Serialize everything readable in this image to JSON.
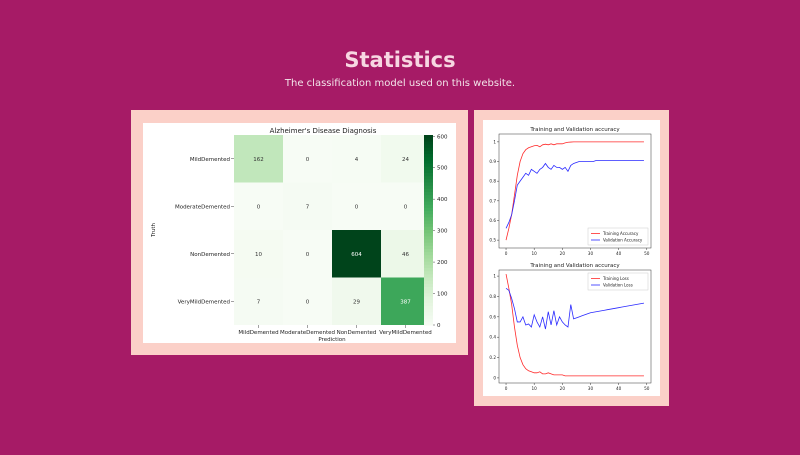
{
  "page": {
    "title": "Statistics",
    "subtitle": "The classification model used on this website."
  },
  "colors": {
    "background": "#a61b66",
    "frame": "#fbd0c8",
    "training_line": "#ff2a2a",
    "validation_line": "#2a2aff"
  },
  "chart_data": [
    {
      "type": "heatmap",
      "title": "Alzheimer's Disease Diagnosis",
      "xlabel": "Prediction",
      "ylabel": "Truth",
      "x_categories": [
        "MildDemented",
        "ModerateDemented",
        "NonDemented",
        "VeryMildDemented"
      ],
      "y_categories": [
        "MildDemented",
        "ModerateDemented",
        "NonDemented",
        "VeryMildDemented"
      ],
      "values": [
        [
          162,
          0,
          4,
          24
        ],
        [
          0,
          7,
          0,
          0
        ],
        [
          10,
          0,
          604,
          46
        ],
        [
          7,
          0,
          29,
          387
        ]
      ],
      "colorbar": {
        "min": 0,
        "max": 604,
        "ticks": [
          0,
          100,
          200,
          300,
          400,
          500,
          600
        ],
        "colormap": "Greens"
      }
    },
    {
      "type": "line",
      "title": "Training and Validation accuracy",
      "x": [
        0,
        1,
        2,
        3,
        4,
        5,
        6,
        7,
        8,
        9,
        10,
        11,
        12,
        13,
        14,
        15,
        16,
        17,
        18,
        19,
        20,
        21,
        22,
        23,
        24,
        25,
        26,
        27,
        28,
        29,
        30,
        31,
        32,
        33,
        34,
        35,
        36,
        37,
        38,
        39,
        40,
        41,
        42,
        43,
        44,
        45,
        46,
        47,
        48,
        49
      ],
      "xlim": [
        -2.5,
        51.5
      ],
      "ylim": [
        0.46,
        1.04
      ],
      "x_ticks": [
        0,
        10,
        20,
        30,
        40,
        50
      ],
      "y_ticks": [
        0.5,
        0.6,
        0.7,
        0.8,
        0.9,
        1.0
      ],
      "legend_position": "lower-right",
      "series": [
        {
          "name": "Training Accuracy",
          "color": "#ff2a2a",
          "values": [
            0.5,
            0.56,
            0.63,
            0.73,
            0.83,
            0.9,
            0.94,
            0.96,
            0.97,
            0.975,
            0.98,
            0.982,
            0.975,
            0.985,
            0.988,
            0.985,
            0.99,
            0.985,
            0.99,
            0.99,
            0.99,
            0.995,
            0.998,
            0.999,
            1.0,
            1.0,
            1.0,
            1.0,
            1.0,
            1.0,
            1.0,
            1.0,
            1.0,
            1.0,
            1.0,
            1.0,
            1.0,
            1.0,
            1.0,
            1.0,
            1.0,
            1.0,
            1.0,
            1.0,
            1.0,
            1.0,
            1.0,
            1.0,
            1.0,
            1.0
          ]
        },
        {
          "name": "Validation Accuracy",
          "color": "#2a2aff",
          "values": [
            0.56,
            0.59,
            0.63,
            0.7,
            0.78,
            0.8,
            0.82,
            0.84,
            0.83,
            0.86,
            0.85,
            0.84,
            0.86,
            0.87,
            0.89,
            0.87,
            0.86,
            0.88,
            0.87,
            0.87,
            0.86,
            0.87,
            0.85,
            0.88,
            0.89,
            0.895,
            0.9,
            0.9,
            0.9,
            0.9,
            0.9,
            0.9,
            0.905,
            0.905,
            0.905,
            0.905,
            0.905,
            0.905,
            0.905,
            0.905,
            0.905,
            0.905,
            0.905,
            0.905,
            0.905,
            0.905,
            0.905,
            0.905,
            0.905,
            0.905
          ]
        }
      ]
    },
    {
      "type": "line",
      "title": "Training and Validation accuracy",
      "x": [
        0,
        1,
        2,
        3,
        4,
        5,
        6,
        7,
        8,
        9,
        10,
        11,
        12,
        13,
        14,
        15,
        16,
        17,
        18,
        19,
        20,
        21,
        22,
        23,
        24,
        25,
        26,
        27,
        28,
        29,
        30,
        31,
        32,
        33,
        34,
        35,
        36,
        37,
        38,
        39,
        40,
        41,
        42,
        43,
        44,
        45,
        46,
        47,
        48,
        49
      ],
      "xlim": [
        -2.5,
        51.5
      ],
      "ylim": [
        -0.05,
        1.06
      ],
      "x_ticks": [
        0,
        10,
        20,
        30,
        40,
        50
      ],
      "y_ticks": [
        0.0,
        0.2,
        0.4,
        0.6,
        0.8,
        1.0
      ],
      "legend_position": "upper-right",
      "series": [
        {
          "name": "Training Loss",
          "color": "#ff2a2a",
          "values": [
            1.02,
            0.88,
            0.72,
            0.5,
            0.32,
            0.2,
            0.13,
            0.09,
            0.07,
            0.06,
            0.05,
            0.05,
            0.06,
            0.04,
            0.04,
            0.05,
            0.04,
            0.03,
            0.03,
            0.03,
            0.03,
            0.02,
            0.02,
            0.02,
            0.02,
            0.02,
            0.02,
            0.02,
            0.02,
            0.02,
            0.02,
            0.02,
            0.02,
            0.02,
            0.02,
            0.02,
            0.02,
            0.02,
            0.02,
            0.02,
            0.02,
            0.02,
            0.02,
            0.02,
            0.02,
            0.02,
            0.02,
            0.02,
            0.02,
            0.02
          ]
        },
        {
          "name": "Validation Loss",
          "color": "#2a2aff",
          "values": [
            0.88,
            0.86,
            0.78,
            0.68,
            0.55,
            0.55,
            0.6,
            0.52,
            0.53,
            0.5,
            0.62,
            0.55,
            0.5,
            0.6,
            0.48,
            0.65,
            0.52,
            0.66,
            0.52,
            0.6,
            0.55,
            0.52,
            0.5,
            0.72,
            0.58,
            0.59,
            0.6,
            0.61,
            0.62,
            0.63,
            0.64,
            0.645,
            0.65,
            0.655,
            0.66,
            0.665,
            0.67,
            0.675,
            0.68,
            0.685,
            0.69,
            0.695,
            0.7,
            0.705,
            0.71,
            0.715,
            0.72,
            0.725,
            0.73,
            0.735
          ]
        }
      ]
    }
  ]
}
